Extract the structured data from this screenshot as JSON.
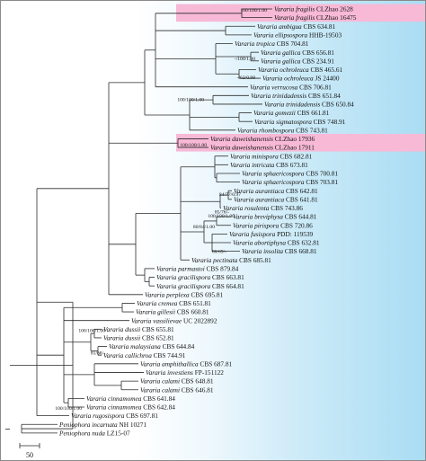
{
  "colors": {
    "highlight": "#f7b9d6",
    "background_gradient_end": "#a9dcf3",
    "branch": "#2a2a2a"
  },
  "scale_bar": {
    "label": "50"
  },
  "taxa": [
    {
      "genus": "Vararia",
      "species": "fragilis",
      "voucher": "CLZhao 2628",
      "highlight": true
    },
    {
      "genus": "Vararia",
      "species": "fragilis",
      "voucher": "CLZhao 16475",
      "highlight": true
    },
    {
      "genus": "Vararia",
      "species": "ambigua",
      "voucher": "CBS 634.81",
      "highlight": false
    },
    {
      "genus": "Vararia",
      "species": "ellipsospora",
      "voucher": "HHB-19503",
      "highlight": false
    },
    {
      "genus": "Vararia",
      "species": "tropica",
      "voucher": "CBS 704.81",
      "highlight": false
    },
    {
      "genus": "Vararia",
      "species": "gallica",
      "voucher": "CBS 656.81",
      "highlight": false
    },
    {
      "genus": "Vararia",
      "species": "gallica",
      "voucher": "CBS 234.91",
      "highlight": false
    },
    {
      "genus": "Vararia",
      "species": "ochroleuca",
      "voucher": "CBS 465.61",
      "highlight": false
    },
    {
      "genus": "Vararia",
      "species": "ochroleuca",
      "voucher": "JS 24400",
      "highlight": false
    },
    {
      "genus": "Vararia",
      "species": "verrucosa",
      "voucher": "CBS 706.81",
      "highlight": false
    },
    {
      "genus": "Vararia",
      "species": "trinidadensis",
      "voucher": "CBS 651.84",
      "highlight": false
    },
    {
      "genus": "Vararia",
      "species": "trinidadensis",
      "voucher": "CBS 650.84",
      "highlight": false
    },
    {
      "genus": "Vararia",
      "species": "gomezii",
      "voucher": "CBS 661.81",
      "highlight": false
    },
    {
      "genus": "Vararia",
      "species": "sigmatospora",
      "voucher": "CBS 748.91",
      "highlight": false
    },
    {
      "genus": "Vararia",
      "species": "rhombospora",
      "voucher": "CBS 743.81",
      "highlight": false
    },
    {
      "genus": "Vararia",
      "species": "daweishanensis",
      "voucher": "CLZhao 17936",
      "highlight": true
    },
    {
      "genus": "Vararia",
      "species": "daweishanensis",
      "voucher": "CLZhao 17911",
      "highlight": true
    },
    {
      "genus": "Vararia",
      "species": "minispora",
      "voucher": "CBS 682.81",
      "highlight": false
    },
    {
      "genus": "Vararia",
      "species": "intricata",
      "voucher": "CBS 673.81",
      "highlight": false
    },
    {
      "genus": "Vararia",
      "species": "sphaericospora",
      "voucher": "CBS 700.81",
      "highlight": false
    },
    {
      "genus": "Vararia",
      "species": "sphaericospora",
      "voucher": "CBS 703.81",
      "highlight": false
    },
    {
      "genus": "Vararia",
      "species": "aurantiaca",
      "voucher": "CBS 642.81",
      "highlight": false
    },
    {
      "genus": "Vararia",
      "species": "aurantiaca",
      "voucher": "CBS 641.81",
      "highlight": false
    },
    {
      "genus": "Vararia",
      "species": "rosulenta",
      "voucher": "CBS 743.86",
      "highlight": false
    },
    {
      "genus": "Vararia",
      "species": "breviphysa",
      "voucher": "CBS 644.81",
      "highlight": false
    },
    {
      "genus": "Vararia",
      "species": "pirispora",
      "voucher": "CBS 720.86",
      "highlight": false
    },
    {
      "genus": "Vararia",
      "species": "fusispora",
      "voucher": "PDD: 119539",
      "highlight": false
    },
    {
      "genus": "Vararia",
      "species": "abortiphysa",
      "voucher": "CBS 632.81",
      "highlight": false
    },
    {
      "genus": "Vararia",
      "species": "insolita",
      "voucher": "CBS 668.81",
      "highlight": false
    },
    {
      "genus": "Vararia",
      "species": "pectinata",
      "voucher": "CBS 685.81",
      "highlight": false
    },
    {
      "genus": "Vararia",
      "species": "parmastoi",
      "voucher": "CBS 879.84",
      "highlight": false
    },
    {
      "genus": "Vararia",
      "species": "gracilispora",
      "voucher": "CBS 663.81",
      "highlight": false
    },
    {
      "genus": "Vararia",
      "species": "gracilispora",
      "voucher": "CBS 664.81",
      "highlight": false
    },
    {
      "genus": "Vararia",
      "species": "perplexa",
      "voucher": "CBS 695.81",
      "highlight": false
    },
    {
      "genus": "Vararia",
      "species": "cremea",
      "voucher": "CBS 651.81",
      "highlight": false
    },
    {
      "genus": "Vararia",
      "species": "gillesii",
      "voucher": "CBS 660.81",
      "highlight": false
    },
    {
      "genus": "Vararia",
      "species": "vassilievae",
      "voucher": "UC 2022892",
      "highlight": false
    },
    {
      "genus": "Vararia",
      "species": "dussii",
      "voucher": "CBS 655.81",
      "highlight": false
    },
    {
      "genus": "Vararia",
      "species": "dussii",
      "voucher": "CBS 652.81",
      "highlight": false
    },
    {
      "genus": "Vararia",
      "species": "malaysiana",
      "voucher": "CBS 644.84",
      "highlight": false
    },
    {
      "genus": "Vararia",
      "species": "callichroa",
      "voucher": "CBS 744.91",
      "highlight": false
    },
    {
      "genus": "Vararia",
      "species": "amphithallica",
      "voucher": "CBS 687.81",
      "highlight": false
    },
    {
      "genus": "Vararia",
      "species": "investiens",
      "voucher": "FP-151122",
      "highlight": false
    },
    {
      "genus": "Vararia",
      "species": "calami",
      "voucher": "CBS 648.81",
      "highlight": false
    },
    {
      "genus": "Vararia",
      "species": "calami",
      "voucher": "CBS 646.81",
      "highlight": false
    },
    {
      "genus": "Vararia",
      "species": "cinnamomea",
      "voucher": "CBS 641.84",
      "highlight": false
    },
    {
      "genus": "Vararia",
      "species": "cinnamomea",
      "voucher": "CBS 642.84",
      "highlight": false
    },
    {
      "genus": "Vararia",
      "species": "rugosispora",
      "voucher": "CBS 697.81",
      "highlight": false
    },
    {
      "genus": "Peniophora",
      "species": "incarnata",
      "voucher": "NH 10271",
      "highlight": false
    },
    {
      "genus": "Peniophora",
      "species": "nuda",
      "voucher": "LZ15-07",
      "highlight": false
    }
  ],
  "support_values": [
    {
      "node": "fragilis",
      "label": "100/100/1.00"
    },
    {
      "node": "gallica-ochroleuca",
      "label": "-/100/1.00"
    },
    {
      "node": "ochroleuca",
      "label": "-/62/0.98"
    },
    {
      "node": "trinidadensis",
      "label": "100/100/1.00"
    },
    {
      "node": "daweishanensis",
      "label": "100/100/1.00"
    },
    {
      "node": "aurantiaca",
      "label": "84/77/0.97"
    },
    {
      "node": "rosulenta",
      "label": "85/76/-"
    },
    {
      "node": "breviphysa-group",
      "label": "80/84/1.00"
    },
    {
      "node": "breviphysa",
      "label": "100/100/1.00"
    },
    {
      "node": "abortiphysa",
      "label": "80/69/-"
    },
    {
      "node": "dussii",
      "label": "100/100/1.00"
    },
    {
      "node": "callichroa",
      "label": "81/68/-"
    },
    {
      "node": "cinnamomea",
      "label": "100/100/1.00"
    }
  ]
}
